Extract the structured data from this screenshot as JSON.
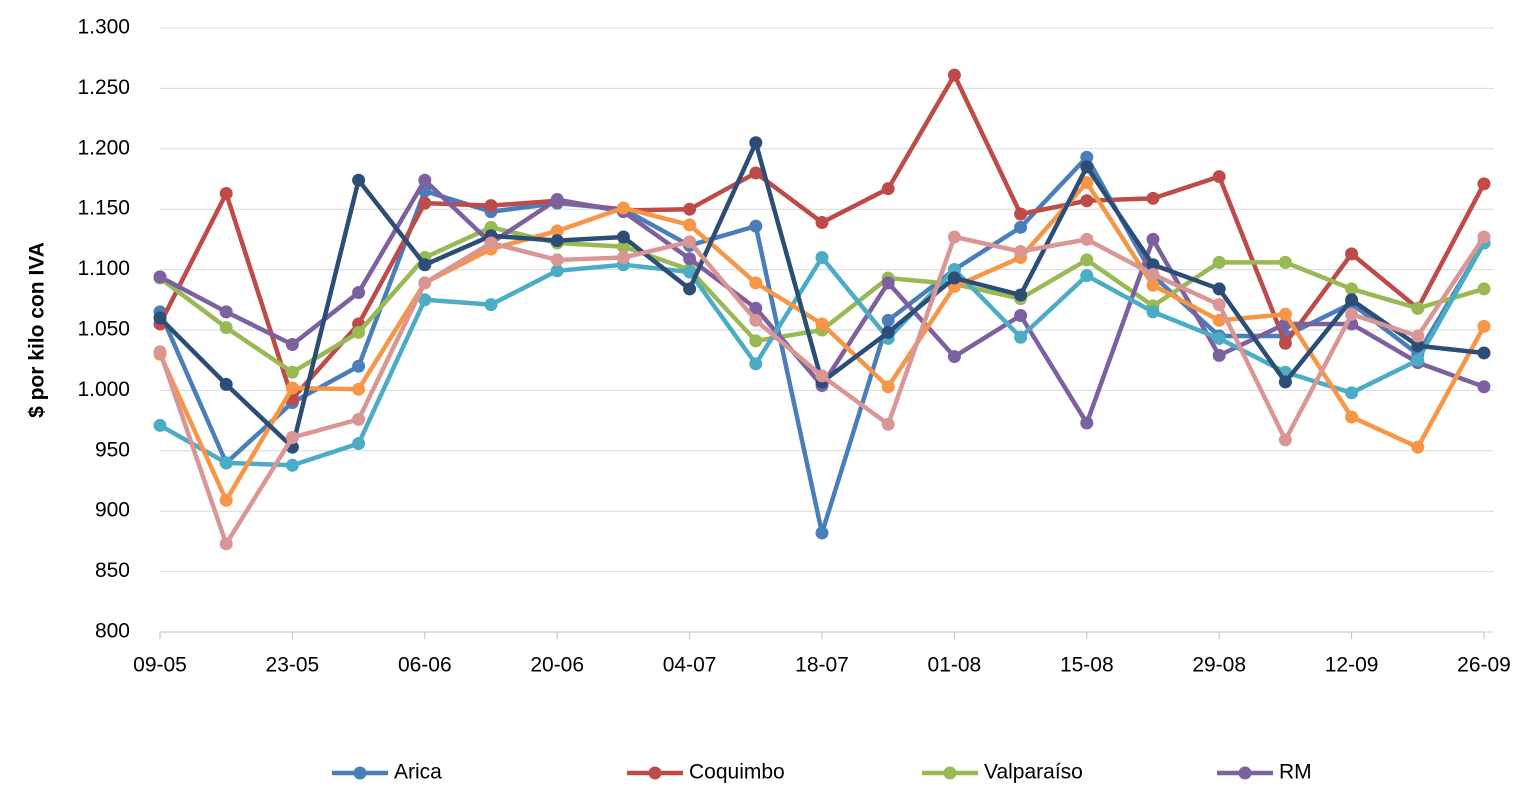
{
  "chart_data": {
    "type": "line",
    "y_label": "$ por kilo con IVA",
    "categories": [
      "09-05",
      null,
      "23-05",
      null,
      "06-06",
      null,
      "20-06",
      null,
      "04-07",
      null,
      "18-07",
      null,
      "01-08",
      null,
      "15-08",
      null,
      "29-08",
      null,
      "12-09",
      null,
      "26-09"
    ],
    "ylim": [
      800,
      1300
    ],
    "yticks": [
      800,
      850,
      900,
      950,
      {
        "value": 1000,
        "label": "1.000"
      },
      {
        "value": 1050,
        "label": "1.050"
      },
      {
        "value": 1100,
        "label": "1.100"
      },
      {
        "value": 1150,
        "label": "1.150"
      },
      {
        "value": 1200,
        "label": "1.200"
      },
      {
        "value": 1250,
        "label": "1.250"
      },
      {
        "value": 1300,
        "label": "1.300"
      }
    ],
    "grid": true,
    "legend": "bottom",
    "series": [
      {
        "name": "Arica",
        "color": "#4a7ebb",
        "values": [
          1065,
          940,
          990,
          1020,
          1165,
          1148,
          1155,
          1150,
          1120,
          1136,
          882,
          1058,
          1100,
          1135,
          1193,
          1095,
          1045,
          1045,
          1072,
          1030,
          1122
        ]
      },
      {
        "name": "Coquimbo",
        "color": "#be4b48",
        "values": [
          1055,
          1163,
          993,
          1055,
          1155,
          1153,
          1157,
          1149,
          1150,
          1180,
          1139,
          1167,
          1261,
          1146,
          1157,
          1159,
          1177,
          1039,
          1113,
          1068,
          1171
        ]
      },
      {
        "name": "Valparaíso",
        "color": "#98b954",
        "values": [
          1093,
          1052,
          1015,
          1048,
          1110,
          1135,
          1122,
          1119,
          1100,
          1041,
          1050,
          1093,
          1088,
          1076,
          1108,
          1070,
          1106,
          1106,
          1084,
          1068,
          1084
        ]
      },
      {
        "name": "RM",
        "color": "#7d60a0",
        "values": [
          1094,
          1065,
          1038,
          1081,
          1174,
          1122,
          1158,
          1148,
          1109,
          1068,
          1004,
          1089,
          1028,
          1062,
          973,
          1125,
          1029,
          1055,
          1055,
          1023,
          1003
        ]
      },
      {
        "color": "#4bacc6",
        "values": [
          971,
          940,
          938,
          956,
          1075,
          1071,
          1099,
          1104,
          1098,
          1022,
          1110,
          1043,
          1100,
          1044,
          1095,
          1065,
          1043,
          1015,
          998,
          1025,
          1122
        ]
      },
      {
        "color": "#f79646",
        "values": [
          1030,
          909,
          1002,
          1001,
          1089,
          1117,
          1132,
          1151,
          1137,
          1089,
          1055,
          1003,
          1086,
          1110,
          1172,
          1087,
          1058,
          1063,
          978,
          953,
          1053
        ]
      },
      {
        "color": "#2c4d75",
        "values": [
          1060,
          1005,
          953,
          1174,
          1104,
          1128,
          1124,
          1127,
          1084,
          1205,
          1007,
          1048,
          1093,
          1079,
          1185,
          1104,
          1084,
          1007,
          1075,
          1037,
          1031
        ]
      },
      {
        "color": "#d99694",
        "values": [
          1032,
          873,
          961,
          976,
          1089,
          1122,
          1108,
          1110,
          1123,
          1058,
          1012,
          972,
          1127,
          1115,
          1125,
          1096,
          1071,
          959,
          1063,
          1045,
          1127
        ]
      }
    ]
  }
}
